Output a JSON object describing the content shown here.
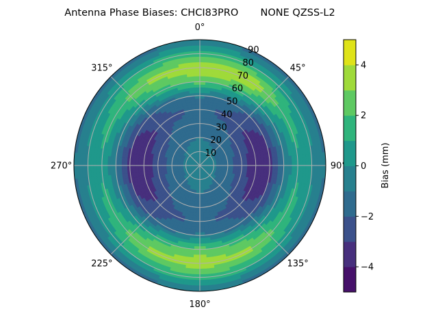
{
  "chart_data": {
    "type": "heatmap",
    "subtype": "polar-contour",
    "title": "Antenna Phase Biases: CHCI83PRO       NONE QZSS-L2",
    "angular_tick_labels": [
      "0°",
      "45°",
      "90°",
      "135°",
      "180°",
      "225°",
      "270°",
      "315°"
    ],
    "angular_ticks": [
      0,
      45,
      90,
      135,
      180,
      225,
      270,
      315
    ],
    "radial_tick_labels": [
      "10",
      "20",
      "30",
      "40",
      "50",
      "60",
      "70",
      "80",
      "90"
    ],
    "radial_ticks": [
      10,
      20,
      30,
      40,
      50,
      60,
      70,
      80,
      90
    ],
    "radial_range": [
      0,
      90
    ],
    "azimuth_direction": "clockwise",
    "zero_location": "N",
    "grid": true,
    "colorbar": {
      "label": "Bias (mm)",
      "range": [
        -5,
        5
      ],
      "levels": [
        -5,
        -4,
        -3,
        -2,
        -1,
        0,
        1,
        2,
        3,
        4,
        5
      ],
      "tick_values": [
        -4,
        -2,
        0,
        2,
        4
      ],
      "tick_labels": [
        "−4",
        "−2",
        "0",
        "2",
        "4"
      ],
      "colors": [
        "#46106a",
        "#472f7d",
        "#3b518b",
        "#2f6b8e",
        "#27808e",
        "#1f988b",
        "#2fb47c",
        "#5ec962",
        "#9fda3a",
        "#dfe318"
      ],
      "placement": "right"
    },
    "azimuths": [
      0,
      30,
      60,
      90,
      120,
      150,
      180,
      210,
      240,
      270,
      300,
      330
    ],
    "zeniths": [
      0,
      10,
      20,
      30,
      40,
      50,
      60,
      70,
      80,
      90
    ],
    "values": [
      [
        -0.5,
        -0.5,
        -0.5,
        -0.5,
        -0.5,
        -0.5,
        -0.5,
        -0.5,
        -0.5,
        -0.5,
        -0.5,
        -0.5
      ],
      [
        -0.7,
        -0.75,
        -0.85,
        -0.9,
        -0.85,
        -0.75,
        -0.7,
        -0.75,
        -0.85,
        -0.9,
        -0.85,
        -0.75
      ],
      [
        -1.0,
        -1.15,
        -1.45,
        -1.6,
        -1.45,
        -1.15,
        -1.0,
        -1.15,
        -1.45,
        -1.6,
        -1.45,
        -1.15
      ],
      [
        -1.4,
        -1.7,
        -2.3,
        -2.6,
        -2.3,
        -1.7,
        -1.4,
        -1.7,
        -2.3,
        -2.6,
        -2.3,
        -1.7
      ],
      [
        -1.8,
        -2.3,
        -3.3,
        -3.8,
        -3.3,
        -2.3,
        -1.8,
        -2.3,
        -3.3,
        -3.8,
        -3.3,
        -2.3
      ],
      [
        -0.8,
        -1.5,
        -2.9,
        -3.6,
        -2.9,
        -1.5,
        -0.8,
        -1.5,
        -2.9,
        -3.6,
        -2.9,
        -1.5
      ],
      [
        2.4,
        1.5,
        -0.3,
        -1.2,
        -0.3,
        1.5,
        2.4,
        1.5,
        -0.3,
        -1.2,
        -0.3,
        1.5
      ],
      [
        4.1,
        4.2,
        1.6,
        0.8,
        1.6,
        3.2,
        3.8,
        3.2,
        1.6,
        0.8,
        1.6,
        3.2
      ],
      [
        1.6,
        1.2,
        0.4,
        0.0,
        0.4,
        1.2,
        1.6,
        1.2,
        0.4,
        0.0,
        0.4,
        1.2
      ],
      [
        -0.8,
        -1.5,
        -1.5,
        -1.0,
        -1.5,
        -1.5,
        -0.8,
        -1.5,
        -1.5,
        -1.0,
        -1.5,
        -1.5
      ]
    ]
  }
}
